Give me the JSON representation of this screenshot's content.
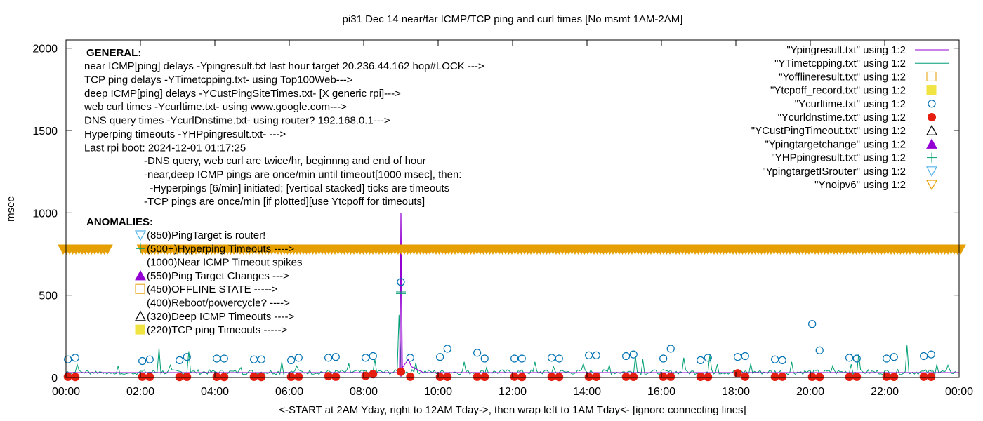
{
  "chart_data": {
    "type": "line",
    "title": "pi31 Dec 14  near/far ICMP/TCP ping and curl times [No msmt 1AM-2AM]",
    "xlabel": "<-START at 2AM Yday, right to 12AM Tday->, then wrap left to 1AM Tday<- [ignore connecting lines]",
    "ylabel": "msec",
    "xlim": [
      0,
      24
    ],
    "ylim": [
      0,
      2050
    ],
    "x_ticks": [
      "00:00",
      "02:00",
      "04:00",
      "06:00",
      "08:00",
      "10:00",
      "12:00",
      "14:00",
      "16:00",
      "18:00",
      "20:00",
      "22:00",
      "00:00"
    ],
    "y_ticks": [
      "0",
      "500",
      "1000",
      "1500",
      "2000"
    ],
    "grid": false,
    "legend_position": "top-right",
    "colors": {
      "ping": "#9400d3",
      "tcp": "#009e73",
      "offline": "#e69f00",
      "tcpoff": "#f0e442",
      "curl": "#0072b2",
      "dns": "#e51e10",
      "deep_timeout": "#000000",
      "target_change": "#9400d3",
      "hping": "#009e73",
      "router": "#56b4e9",
      "noipv6": "#e69f00"
    },
    "legend": [
      {
        "label": "\"Ypingresult.txt\" using 1:2",
        "marker": "line",
        "color": "#9400d3"
      },
      {
        "label": "\"YTimetcpping.txt\" using 1:2",
        "marker": "line",
        "color": "#009e73"
      },
      {
        "label": "\"Yofflineresult.txt\" using 1:2",
        "marker": "open-square",
        "color": "#e69f00"
      },
      {
        "label": "\"Ytcpoff_record.txt\" using 1:2",
        "marker": "filled-square",
        "color": "#f0e442"
      },
      {
        "label": "\"Ycurltime.txt\" using 1:2",
        "marker": "open-circle",
        "color": "#0072b2"
      },
      {
        "label": "\"Ycurldnstime.txt\" using 1:2",
        "marker": "filled-circle",
        "color": "#e51e10"
      },
      {
        "label": "\"YCustPingTimeout.txt\" using 1:2",
        "marker": "open-triangle",
        "color": "#000000"
      },
      {
        "label": "\"Ypingtargetchange\" using 1:2",
        "marker": "filled-triangle",
        "color": "#9400d3"
      },
      {
        "label": "\"YHPpingresult.txt\" using 1:2",
        "marker": "plus",
        "color": "#009e73"
      },
      {
        "label": "\"YpingtargetISrouter\" using 1:2",
        "marker": "open-triangle-down",
        "color": "#56b4e9"
      },
      {
        "label": "\"Ynoipv6\" using 1:2",
        "marker": "open-triangle-down",
        "color": "#e69f00"
      }
    ],
    "general_heading": "GENERAL:",
    "general_lines": [
      "near ICMP[ping] delays -Ypingresult.txt last hour target 20.236.44.162 hop#LOCK --->",
      "TCP ping delays -YTimetcpping.txt- using Top100Web--->",
      "deep ICMP[ping] delays -YCustPingSiteTimes.txt- [X generic rpi]--->",
      "web curl times -Ycurltime.txt- using www.google.com--->",
      "DNS query times -YcurlDnstime.txt- using router? 192.168.0.1--->",
      "Hyperping timeouts -YHPpingresult.txt- --->",
      "Last rpi boot: 2024-12-01 01:17:25"
    ],
    "general_notes": [
      "-DNS query, web curl are twice/hr, beginnng and end of hour",
      "-near,deep ICMP pings are once/min until timeout[1000 msec], then:",
      "  -Hyperpings [6/min] initiated; [vertical stacked] ticks are timeouts",
      "-TCP pings are once/min [if plotted][use Ytcpoff for timeouts]"
    ],
    "anomalies_heading": "ANOMALIES:",
    "anomalies": [
      {
        "label": "(850)PingTarget is router!",
        "marker": "open-triangle-down",
        "color": "#56b4e9"
      },
      {
        "label": "(500+)Hyperping Timeouts ---->",
        "marker": "plus",
        "color": "#009e73"
      },
      {
        "label": "(1000)Near ICMP Timeout spikes",
        "marker": "none",
        "color": "#000000"
      },
      {
        "label": "(550)Ping Target Changes --->",
        "marker": "filled-triangle",
        "color": "#9400d3"
      },
      {
        "label": "(450)OFFLINE STATE ----->",
        "marker": "open-square",
        "color": "#e69f00"
      },
      {
        "label": "(400)Reboot/powercycle? ---->",
        "marker": "none",
        "color": "#000000"
      },
      {
        "label": "(320)Deep ICMP Timeouts ---->",
        "marker": "open-triangle",
        "color": "#000000"
      },
      {
        "label": "(220)TCP ping Timeouts ----->",
        "marker": "filled-square",
        "color": "#f0e442"
      }
    ],
    "noipv6_band": {
      "y": 780,
      "gap_x": [
        1.15,
        2.0
      ]
    },
    "ping_baseline": 30,
    "ping_spike": {
      "x": 9.0,
      "y": 1000
    },
    "tcp_baseline": 18,
    "tcp_spikes": [
      {
        "x": 0.3,
        "y": 80
      },
      {
        "x": 1.4,
        "y": 70
      },
      {
        "x": 2.5,
        "y": 180
      },
      {
        "x": 2.8,
        "y": 75
      },
      {
        "x": 3.3,
        "y": 160
      },
      {
        "x": 4.7,
        "y": 60
      },
      {
        "x": 5.8,
        "y": 95
      },
      {
        "x": 6.2,
        "y": 70
      },
      {
        "x": 7.6,
        "y": 85
      },
      {
        "x": 8.3,
        "y": 110
      },
      {
        "x": 8.95,
        "y": 380
      },
      {
        "x": 9.4,
        "y": 90
      },
      {
        "x": 10.7,
        "y": 95
      },
      {
        "x": 11.3,
        "y": 60
      },
      {
        "x": 12.6,
        "y": 95
      },
      {
        "x": 13.1,
        "y": 65
      },
      {
        "x": 13.9,
        "y": 85
      },
      {
        "x": 14.6,
        "y": 75
      },
      {
        "x": 15.3,
        "y": 130
      },
      {
        "x": 15.5,
        "y": 110
      },
      {
        "x": 16.6,
        "y": 120
      },
      {
        "x": 17.3,
        "y": 135
      },
      {
        "x": 17.5,
        "y": 80
      },
      {
        "x": 18.4,
        "y": 85
      },
      {
        "x": 19.5,
        "y": 95
      },
      {
        "x": 20.6,
        "y": 70
      },
      {
        "x": 21.1,
        "y": 80
      },
      {
        "x": 21.3,
        "y": 140
      },
      {
        "x": 22.6,
        "y": 195
      },
      {
        "x": 23.4,
        "y": 80
      },
      {
        "x": 23.7,
        "y": 75
      }
    ],
    "hping_marks": [
      {
        "x": 9.0,
        "y": 520
      },
      {
        "x": 9.0,
        "y": 510
      }
    ],
    "curl_points": [
      [
        0.05,
        110
      ],
      [
        0.25,
        120
      ],
      [
        2.05,
        100
      ],
      [
        2.25,
        110
      ],
      [
        3.05,
        105
      ],
      [
        3.25,
        125
      ],
      [
        4.05,
        115
      ],
      [
        4.25,
        115
      ],
      [
        5.05,
        110
      ],
      [
        5.25,
        110
      ],
      [
        6.05,
        105
      ],
      [
        6.25,
        120
      ],
      [
        7.05,
        120
      ],
      [
        7.25,
        125
      ],
      [
        8.05,
        120
      ],
      [
        8.25,
        130
      ],
      [
        9.0,
        580
      ],
      [
        9.25,
        120
      ],
      [
        10.05,
        125
      ],
      [
        10.25,
        175
      ],
      [
        11.05,
        150
      ],
      [
        11.25,
        115
      ],
      [
        12.05,
        115
      ],
      [
        12.25,
        115
      ],
      [
        13.05,
        120
      ],
      [
        13.25,
        115
      ],
      [
        14.05,
        135
      ],
      [
        14.25,
        135
      ],
      [
        15.05,
        130
      ],
      [
        15.25,
        140
      ],
      [
        16.05,
        115
      ],
      [
        16.25,
        175
      ],
      [
        17.05,
        105
      ],
      [
        17.25,
        120
      ],
      [
        18.05,
        125
      ],
      [
        18.25,
        130
      ],
      [
        19.05,
        110
      ],
      [
        19.25,
        105
      ],
      [
        20.05,
        325
      ],
      [
        20.25,
        165
      ],
      [
        21.05,
        120
      ],
      [
        21.25,
        115
      ],
      [
        22.05,
        115
      ],
      [
        22.25,
        125
      ],
      [
        23.05,
        130
      ],
      [
        23.25,
        140
      ]
    ],
    "dns_points": [
      [
        0.05,
        5
      ],
      [
        0.25,
        3
      ],
      [
        2.05,
        5
      ],
      [
        2.25,
        4
      ],
      [
        3.05,
        3
      ],
      [
        3.25,
        4
      ],
      [
        4.05,
        4
      ],
      [
        4.25,
        3
      ],
      [
        5.05,
        5
      ],
      [
        5.25,
        3
      ],
      [
        6.05,
        4
      ],
      [
        6.25,
        5
      ],
      [
        7.05,
        8
      ],
      [
        7.25,
        5
      ],
      [
        8.05,
        10
      ],
      [
        8.25,
        20
      ],
      [
        9.0,
        35
      ],
      [
        9.25,
        5
      ],
      [
        10.05,
        4
      ],
      [
        10.25,
        4
      ],
      [
        11.05,
        5
      ],
      [
        11.25,
        4
      ],
      [
        12.05,
        5
      ],
      [
        12.25,
        3
      ],
      [
        13.05,
        4
      ],
      [
        13.25,
        3
      ],
      [
        14.05,
        4
      ],
      [
        14.25,
        4
      ],
      [
        15.05,
        5
      ],
      [
        15.25,
        4
      ],
      [
        16.05,
        5
      ],
      [
        16.25,
        5
      ],
      [
        17.05,
        4
      ],
      [
        17.25,
        3
      ],
      [
        18.05,
        25
      ],
      [
        18.25,
        5
      ],
      [
        19.05,
        4
      ],
      [
        19.25,
        5
      ],
      [
        20.05,
        4
      ],
      [
        20.25,
        3
      ],
      [
        21.05,
        4
      ],
      [
        21.25,
        5
      ],
      [
        22.05,
        5
      ],
      [
        22.25,
        4
      ],
      [
        23.05,
        5
      ],
      [
        23.25,
        4
      ]
    ]
  }
}
